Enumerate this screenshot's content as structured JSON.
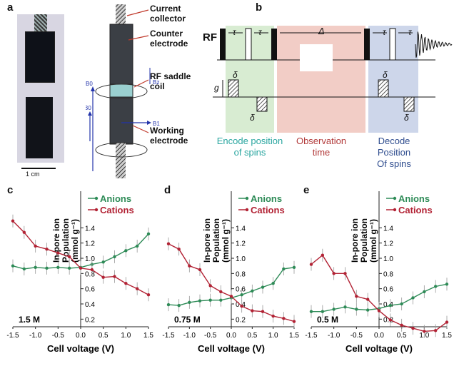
{
  "panel_labels": {
    "a": "a",
    "b": "b",
    "c": "c",
    "d": "d",
    "e": "e"
  },
  "panel_a": {
    "scale_bar": "1 cm",
    "labels": {
      "current_collector": "Current\ncollector",
      "counter_electrode": "Counter\nelectrode",
      "rf_coil": "RF saddle\ncoil",
      "working_electrode": "Working\nelectrode",
      "b0_top": "B0",
      "b0_mid": "B0",
      "b1": "B1",
      "bz": "Bz"
    }
  },
  "panel_b": {
    "rf": "RF",
    "tau": "τ",
    "delta_big": "Δ",
    "g": "g",
    "delta_small": "δ",
    "phases": [
      "Encode position\nof spins",
      "Observation\ntime",
      "Decode\nPosition\nOf spins"
    ],
    "colors": {
      "encode_bg": "#d8ecd2",
      "obs_bg": "#f2cdc6",
      "decode_bg": "#cdd6ea",
      "encode_text": "#2aa6a0",
      "obs_text": "#b23a3a",
      "decode_text": "#2e4c8e"
    }
  },
  "colors": {
    "anions": "#2e8b57",
    "cations": "#b22234"
  },
  "chart_data": [
    {
      "type": "line",
      "panel": "c",
      "concentration_label": "1.5 M",
      "ylabel": "In-pore ion\nPopulation\n(mmol g⁻¹)",
      "xlabel": "Cell voltage (V)",
      "xlim": [
        -1.5,
        1.5
      ],
      "ylim": [
        0.1,
        1.6
      ],
      "xticks": [
        "-1.5",
        "-1.0",
        "-0.5",
        "0.0",
        "0.5",
        "1.0",
        "1.5"
      ],
      "yticks": [
        "0.2",
        "0.4",
        "0.6",
        "0.8",
        "1.0",
        "1.2",
        "1.4"
      ],
      "series": [
        {
          "name": "Anions",
          "x": [
            -1.5,
            -1.25,
            -1.0,
            -0.75,
            -0.5,
            -0.25,
            0.0,
            0.25,
            0.5,
            0.75,
            1.0,
            1.25,
            1.5
          ],
          "y": [
            0.9,
            0.86,
            0.88,
            0.87,
            0.88,
            0.87,
            0.88,
            0.92,
            0.95,
            1.02,
            1.1,
            1.16,
            1.32
          ]
        },
        {
          "name": "Cations",
          "x": [
            -1.5,
            -1.25,
            -1.0,
            -0.75,
            -0.5,
            -0.25,
            0.0,
            0.25,
            0.5,
            0.75,
            1.0,
            1.25,
            1.5
          ],
          "y": [
            1.49,
            1.34,
            1.16,
            1.12,
            1.07,
            1.02,
            0.87,
            0.85,
            0.75,
            0.76,
            0.67,
            0.6,
            0.52
          ]
        }
      ]
    },
    {
      "type": "line",
      "panel": "d",
      "concentration_label": "0.75 M",
      "ylabel": "In-pore ion\nPopulation\n(mmol g⁻¹)",
      "xlabel": "Cell voltage (V)",
      "xlim": [
        -1.5,
        1.5
      ],
      "ylim": [
        0.1,
        1.6
      ],
      "xticks": [
        "-1.5",
        "-1.0",
        "-0.5",
        "0.0",
        "0.5",
        "1.0",
        "1.5"
      ],
      "yticks": [
        "0.2",
        "0.4",
        "0.6",
        "0.8",
        "1.0",
        "1.2",
        "1.4"
      ],
      "series": [
        {
          "name": "Anions",
          "x": [
            -1.5,
            -1.25,
            -1.0,
            -0.75,
            -0.5,
            -0.25,
            0.0,
            0.25,
            0.5,
            0.75,
            1.0,
            1.25,
            1.5
          ],
          "y": [
            0.39,
            0.38,
            0.42,
            0.44,
            0.45,
            0.45,
            0.48,
            0.52,
            0.57,
            0.62,
            0.67,
            0.86,
            0.88
          ]
        },
        {
          "name": "Cations",
          "x": [
            -1.5,
            -1.25,
            -1.0,
            -0.75,
            -0.5,
            -0.25,
            0.0,
            0.25,
            0.5,
            0.75,
            1.0,
            1.25,
            1.5
          ],
          "y": [
            1.19,
            1.12,
            0.9,
            0.85,
            0.64,
            0.56,
            0.5,
            0.37,
            0.31,
            0.3,
            0.24,
            0.21,
            0.17
          ]
        }
      ]
    },
    {
      "type": "line",
      "panel": "e",
      "concentration_label": "0.5 M",
      "ylabel": "In-pore ion\nPopulation\n(mmol g⁻¹)",
      "xlabel": "Cell voltage (V)",
      "xlim": [
        -1.5,
        1.5
      ],
      "ylim": [
        0.1,
        1.6
      ],
      "xticks": [
        "-1.5",
        "-1.0",
        "-0.5",
        "0.0",
        "0.5",
        "1.0",
        "1.5"
      ],
      "yticks": [
        "0.2",
        "0.4",
        "0.6",
        "0.8",
        "1.0",
        "1.2",
        "1.4"
      ],
      "series": [
        {
          "name": "Anions",
          "x": [
            -1.5,
            -1.25,
            -1.0,
            -0.75,
            -0.5,
            -0.25,
            0.0,
            0.25,
            0.5,
            0.75,
            1.0,
            1.25,
            1.5
          ],
          "y": [
            0.3,
            0.3,
            0.33,
            0.36,
            0.33,
            0.32,
            0.34,
            0.38,
            0.4,
            0.48,
            0.56,
            0.63,
            0.66
          ]
        },
        {
          "name": "Cations",
          "x": [
            -1.5,
            -1.25,
            -1.0,
            -0.75,
            -0.5,
            -0.25,
            0.0,
            0.25,
            0.5,
            0.75,
            1.0,
            1.25,
            1.5
          ],
          "y": [
            0.92,
            1.04,
            0.8,
            0.8,
            0.5,
            0.46,
            0.31,
            0.19,
            0.12,
            0.08,
            0.04,
            0.05,
            0.16
          ]
        }
      ]
    }
  ]
}
